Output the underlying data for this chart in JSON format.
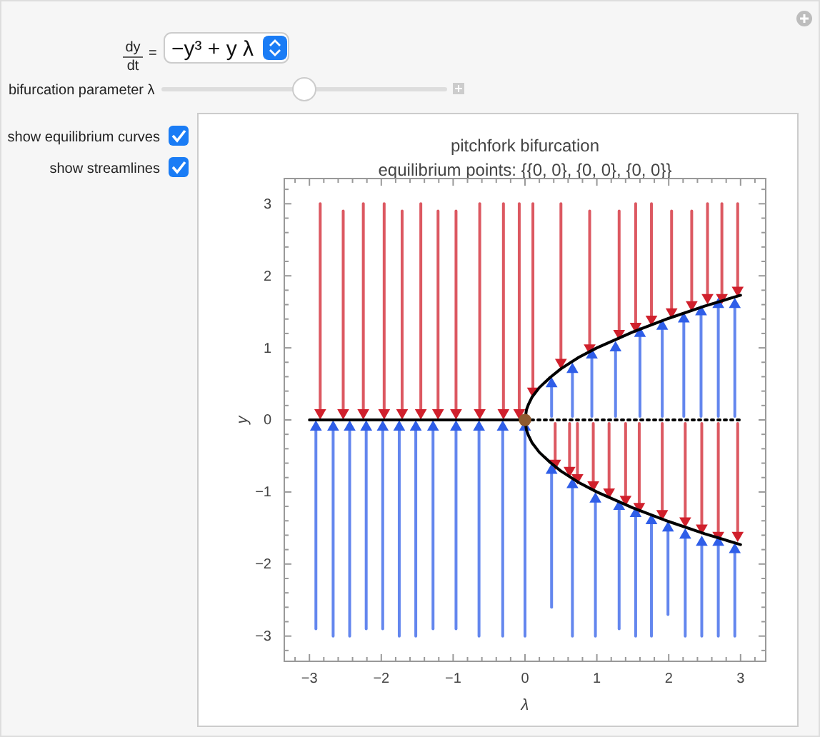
{
  "chart_data": {
    "type": "line",
    "title": "pitchfork bifurcation",
    "subtitle": "equilibrium points: {{0, 0}, {0, 0}, {0, 0}}",
    "xlabel": "λ",
    "ylabel": "y",
    "annotations": [
      "dy",
      "dt",
      "=",
      "−y³ + y λ",
      "bifurcation parameter λ",
      "show equilibrium curves",
      "show streamlines"
    ],
    "xlim": [
      -3.35,
      3.35
    ],
    "ylim": [
      -3.35,
      3.35
    ],
    "xticks": [
      {
        "value": -3.2,
        "label": null
      },
      {
        "value": -3,
        "label": "−3"
      },
      {
        "value": -2.8,
        "label": null
      },
      {
        "value": -2.6,
        "label": null
      },
      {
        "value": -2.4,
        "label": null
      },
      {
        "value": -2.2,
        "label": null
      },
      {
        "value": -2,
        "label": "−2"
      },
      {
        "value": -1.8,
        "label": null
      },
      {
        "value": -1.6,
        "label": null
      },
      {
        "value": -1.4,
        "label": null
      },
      {
        "value": -1.2,
        "label": null
      },
      {
        "value": -1,
        "label": "−1"
      },
      {
        "value": -0.8,
        "label": null
      },
      {
        "value": -0.6,
        "label": null
      },
      {
        "value": -0.4,
        "label": null
      },
      {
        "value": -0.2,
        "label": null
      },
      0,
      {
        "value": 0.2,
        "label": null
      },
      {
        "value": 0.4,
        "label": null
      },
      {
        "value": 0.6,
        "label": null
      },
      {
        "value": 0.8,
        "label": null
      },
      1,
      {
        "value": 1.2,
        "label": null
      },
      {
        "value": 1.4,
        "label": null
      },
      {
        "value": 1.6,
        "label": null
      },
      {
        "value": 1.8,
        "label": null
      },
      2,
      {
        "value": 2.2,
        "label": null
      },
      {
        "value": 2.4,
        "label": null
      },
      {
        "value": 2.6,
        "label": null
      },
      {
        "value": 2.8,
        "label": null
      },
      3,
      {
        "value": 3.2,
        "label": null
      }
    ],
    "yticks": [
      {
        "value": -3.2,
        "label": null
      },
      {
        "value": -3,
        "label": "−3"
      },
      {
        "value": -2.8,
        "label": null
      },
      {
        "value": -2.6,
        "label": null
      },
      {
        "value": -2.4,
        "label": null
      },
      {
        "value": -2.2,
        "label": null
      },
      {
        "value": -2,
        "label": "−2"
      },
      {
        "value": -1.8,
        "label": null
      },
      {
        "value": -1.6,
        "label": null
      },
      {
        "value": -1.4,
        "label": null
      },
      {
        "value": -1.2,
        "label": null
      },
      {
        "value": -1,
        "label": "−1"
      },
      {
        "value": -0.8,
        "label": null
      },
      {
        "value": -0.6,
        "label": null
      },
      {
        "value": -0.4,
        "label": null
      },
      {
        "value": -0.2,
        "label": null
      },
      0,
      {
        "value": 0.2,
        "label": null
      },
      {
        "value": 0.4,
        "label": null
      },
      {
        "value": 0.6,
        "label": null
      },
      {
        "value": 0.8,
        "label": null
      },
      1,
      {
        "value": 1.2,
        "label": null
      },
      {
        "value": 1.4,
        "label": null
      },
      {
        "value": 1.6,
        "label": null
      },
      {
        "value": 1.8,
        "label": null
      },
      2,
      {
        "value": 2.2,
        "label": null
      },
      {
        "value": 2.4,
        "label": null
      },
      {
        "value": 2.6,
        "label": null
      },
      {
        "value": 2.8,
        "label": null
      },
      3,
      {
        "value": 3.2,
        "label": null
      }
    ],
    "grid": false,
    "series": [
      {
        "color": "#d0202c",
        "marker": "triangle",
        "x": [
          -2.85,
          -2.85
        ],
        "values": [
          3,
          0.1
        ]
      },
      {
        "color": "#d0202c",
        "marker": "triangle",
        "x": [
          -2.53,
          -2.53
        ],
        "values": [
          2.9,
          0.1
        ]
      },
      {
        "color": "#d0202c",
        "marker": "triangle",
        "x": [
          -2.25,
          -2.25
        ],
        "values": [
          3,
          0.1
        ]
      },
      {
        "color": "#d0202c",
        "marker": "triangle",
        "x": [
          -1.96,
          -1.96
        ],
        "values": [
          3,
          0.1
        ]
      },
      {
        "color": "#d0202c",
        "marker": "triangle",
        "x": [
          -1.71,
          -1.71
        ],
        "values": [
          2.9,
          0.1
        ]
      },
      {
        "color": "#d0202c",
        "marker": "triangle",
        "x": [
          -1.45,
          -1.45
        ],
        "values": [
          3,
          0.1
        ]
      },
      {
        "color": "#d0202c",
        "marker": "triangle",
        "x": [
          -1.21,
          -1.21
        ],
        "values": [
          2.9,
          0.1
        ]
      },
      {
        "color": "#d0202c",
        "marker": "triangle",
        "x": [
          -0.96,
          -0.96
        ],
        "values": [
          2.9,
          0.1
        ]
      },
      {
        "color": "#d0202c",
        "marker": "triangle",
        "x": [
          -0.63,
          -0.63
        ],
        "values": [
          3,
          0.1
        ]
      },
      {
        "color": "#d0202c",
        "marker": "triangle",
        "x": [
          -0.3,
          -0.3
        ],
        "values": [
          3,
          0.1
        ]
      },
      {
        "color": "#d0202c",
        "marker": "triangle",
        "x": [
          -0.08,
          -0.08
        ],
        "values": [
          3,
          0.1
        ]
      },
      {
        "color": "#d0202c",
        "marker": "triangle",
        "x": [
          0.11,
          0.11
        ],
        "values": [
          3,
          0.4
        ]
      },
      {
        "color": "#d0202c",
        "marker": "triangle",
        "x": [
          0.5,
          0.5
        ],
        "values": [
          3,
          0.8
        ]
      },
      {
        "color": "#d0202c",
        "marker": "triangle",
        "x": [
          0.9,
          0.9
        ],
        "values": [
          2.9,
          1.0
        ]
      },
      {
        "color": "#d0202c",
        "marker": "triangle",
        "x": [
          1.31,
          1.31
        ],
        "values": [
          2.9,
          1.2
        ]
      },
      {
        "color": "#d0202c",
        "marker": "triangle",
        "x": [
          1.54,
          1.54
        ],
        "values": [
          3,
          1.3
        ]
      },
      {
        "color": "#d0202c",
        "marker": "triangle",
        "x": [
          1.76,
          1.76
        ],
        "values": [
          3,
          1.4
        ]
      },
      {
        "color": "#d0202c",
        "marker": "triangle",
        "x": [
          2.04,
          2.04
        ],
        "values": [
          2.9,
          1.5
        ]
      },
      {
        "color": "#d0202c",
        "marker": "triangle",
        "x": [
          2.32,
          2.32
        ],
        "values": [
          2.9,
          1.6
        ]
      },
      {
        "color": "#d0202c",
        "marker": "triangle",
        "x": [
          2.54,
          2.54
        ],
        "values": [
          3,
          1.7
        ]
      },
      {
        "color": "#d0202c",
        "marker": "triangle",
        "x": [
          2.74,
          2.74
        ],
        "values": [
          3,
          1.7
        ]
      },
      {
        "color": "#d0202c",
        "marker": "triangle",
        "x": [
          2.96,
          2.96
        ],
        "values": [
          3,
          1.8
        ]
      },
      {
        "color": "#2f5ee8",
        "marker": "triangle",
        "x": [
          0.37,
          0.37
        ],
        "values": [
          0.05,
          0.5
        ]
      },
      {
        "color": "#2f5ee8",
        "marker": "triangle",
        "x": [
          0.66,
          0.66
        ],
        "values": [
          0.05,
          0.7
        ]
      },
      {
        "color": "#2f5ee8",
        "marker": "triangle",
        "x": [
          0.93,
          0.93
        ],
        "values": [
          0.05,
          0.9
        ]
      },
      {
        "color": "#2f5ee8",
        "marker": "triangle",
        "x": [
          1.26,
          1.26
        ],
        "values": [
          0.05,
          1.0
        ]
      },
      {
        "color": "#2f5ee8",
        "marker": "triangle",
        "x": [
          1.6,
          1.6
        ],
        "values": [
          0.05,
          1.2
        ]
      },
      {
        "color": "#2f5ee8",
        "marker": "triangle",
        "x": [
          1.91,
          1.91
        ],
        "values": [
          0.05,
          1.3
        ]
      },
      {
        "color": "#2f5ee8",
        "marker": "triangle",
        "x": [
          2.21,
          2.21
        ],
        "values": [
          0.05,
          1.4
        ]
      },
      {
        "color": "#2f5ee8",
        "marker": "triangle",
        "x": [
          2.45,
          2.45
        ],
        "values": [
          0.05,
          1.5
        ]
      },
      {
        "color": "#2f5ee8",
        "marker": "triangle",
        "x": [
          2.69,
          2.69
        ],
        "values": [
          0.05,
          1.6
        ]
      },
      {
        "color": "#2f5ee8",
        "marker": "triangle",
        "x": [
          2.92,
          2.92
        ],
        "values": [
          0.05,
          1.6
        ]
      },
      {
        "color": "#d0202c",
        "marker": "triangle",
        "x": [
          0.42,
          0.42
        ],
        "values": [
          -0.05,
          -0.6
        ]
      },
      {
        "color": "#d0202c",
        "marker": "triangle",
        "x": [
          0.62,
          0.62
        ],
        "values": [
          -0.05,
          -0.7
        ]
      },
      {
        "color": "#d0202c",
        "marker": "triangle",
        "x": [
          0.73,
          0.73
        ],
        "values": [
          -0.05,
          -0.8
        ]
      },
      {
        "color": "#d0202c",
        "marker": "triangle",
        "x": [
          0.95,
          0.95
        ],
        "values": [
          -0.05,
          -0.9
        ]
      },
      {
        "color": "#d0202c",
        "marker": "triangle",
        "x": [
          1.17,
          1.17
        ],
        "values": [
          -0.05,
          -1.0
        ]
      },
      {
        "color": "#d0202c",
        "marker": "triangle",
        "x": [
          1.4,
          1.4
        ],
        "values": [
          -0.05,
          -1.1
        ]
      },
      {
        "color": "#d0202c",
        "marker": "triangle",
        "x": [
          1.59,
          1.59
        ],
        "values": [
          -0.05,
          -1.2
        ]
      },
      {
        "color": "#d0202c",
        "marker": "triangle",
        "x": [
          1.91,
          1.91
        ],
        "values": [
          -0.05,
          -1.3
        ]
      },
      {
        "color": "#d0202c",
        "marker": "triangle",
        "x": [
          2.23,
          2.23
        ],
        "values": [
          -0.05,
          -1.4
        ]
      },
      {
        "color": "#d0202c",
        "marker": "triangle",
        "x": [
          2.46,
          2.46
        ],
        "values": [
          -0.05,
          -1.5
        ]
      },
      {
        "color": "#d0202c",
        "marker": "triangle",
        "x": [
          2.69,
          2.69
        ],
        "values": [
          -0.05,
          -1.6
        ]
      },
      {
        "color": "#d0202c",
        "marker": "triangle",
        "x": [
          2.96,
          2.96
        ],
        "values": [
          -0.05,
          -1.6
        ]
      },
      {
        "color": "#2f5ee8",
        "marker": "triangle",
        "x": [
          -2.91,
          -2.91
        ],
        "values": [
          -2.9,
          -0.1
        ]
      },
      {
        "color": "#2f5ee8",
        "marker": "triangle",
        "x": [
          -2.67,
          -2.67
        ],
        "values": [
          -3,
          -0.1
        ]
      },
      {
        "color": "#2f5ee8",
        "marker": "triangle",
        "x": [
          -2.44,
          -2.44
        ],
        "values": [
          -3,
          -0.1
        ]
      },
      {
        "color": "#2f5ee8",
        "marker": "triangle",
        "x": [
          -2.21,
          -2.21
        ],
        "values": [
          -2.9,
          -0.1
        ]
      },
      {
        "color": "#2f5ee8",
        "marker": "triangle",
        "x": [
          -1.98,
          -1.98
        ],
        "values": [
          -2.9,
          -0.1
        ]
      },
      {
        "color": "#2f5ee8",
        "marker": "triangle",
        "x": [
          -1.75,
          -1.75
        ],
        "values": [
          -3,
          -0.1
        ]
      },
      {
        "color": "#2f5ee8",
        "marker": "triangle",
        "x": [
          -1.52,
          -1.52
        ],
        "values": [
          -3,
          -0.1
        ]
      },
      {
        "color": "#2f5ee8",
        "marker": "triangle",
        "x": [
          -1.28,
          -1.28
        ],
        "values": [
          -2.9,
          -0.1
        ]
      },
      {
        "color": "#2f5ee8",
        "marker": "triangle",
        "x": [
          -0.96,
          -0.96
        ],
        "values": [
          -2.9,
          -0.1
        ]
      },
      {
        "color": "#2f5ee8",
        "marker": "triangle",
        "x": [
          -0.64,
          -0.64
        ],
        "values": [
          -3,
          -0.1
        ]
      },
      {
        "color": "#2f5ee8",
        "marker": "triangle",
        "x": [
          -0.31,
          -0.31
        ],
        "values": [
          -3,
          -0.1
        ]
      },
      {
        "color": "#2f5ee8",
        "marker": "triangle",
        "x": [
          0,
          0
        ],
        "values": [
          -3,
          -0.1
        ]
      },
      {
        "color": "#2f5ee8",
        "marker": "triangle",
        "x": [
          0.37,
          0.37
        ],
        "values": [
          -2.6,
          -0.7
        ]
      },
      {
        "color": "#2f5ee8",
        "marker": "triangle",
        "x": [
          0.66,
          0.66
        ],
        "values": [
          -3,
          -0.9
        ]
      },
      {
        "color": "#2f5ee8",
        "marker": "triangle",
        "x": [
          0.98,
          0.98
        ],
        "values": [
          -3,
          -1.1
        ]
      },
      {
        "color": "#2f5ee8",
        "marker": "triangle",
        "x": [
          1.31,
          1.31
        ],
        "values": [
          -2.9,
          -1.2
        ]
      },
      {
        "color": "#2f5ee8",
        "marker": "triangle",
        "x": [
          1.54,
          1.54
        ],
        "values": [
          -3,
          -1.3
        ]
      },
      {
        "color": "#2f5ee8",
        "marker": "triangle",
        "x": [
          1.76,
          1.76
        ],
        "values": [
          -3,
          -1.4
        ]
      },
      {
        "color": "#2f5ee8",
        "marker": "triangle",
        "x": [
          1.99,
          1.99
        ],
        "values": [
          -2.7,
          -1.5
        ]
      },
      {
        "color": "#2f5ee8",
        "marker": "triangle",
        "x": [
          2.23,
          2.23
        ],
        "values": [
          -3,
          -1.6
        ]
      },
      {
        "color": "#2f5ee8",
        "marker": "triangle",
        "x": [
          2.46,
          2.46
        ],
        "values": [
          -3,
          -1.7
        ]
      },
      {
        "color": "#2f5ee8",
        "marker": "triangle",
        "x": [
          2.69,
          2.69
        ],
        "values": [
          -3,
          -1.7
        ]
      },
      {
        "color": "#2f5ee8",
        "marker": "triangle",
        "x": [
          2.92,
          2.92
        ],
        "values": [
          -3,
          -1.8
        ]
      },
      {
        "color": "#000000",
        "line_style": "solid",
        "x": [
          -3,
          0
        ],
        "values": [
          0,
          0
        ]
      },
      {
        "color": "#000000",
        "line_style": "dotted",
        "x": [
          0,
          3
        ],
        "values": [
          0,
          0
        ]
      },
      {
        "color": "#000000",
        "line_style": "solid",
        "x": [
          0,
          0.02,
          0.05,
          0.1,
          0.2,
          0.35,
          0.5,
          0.75,
          1,
          1.5,
          2,
          2.5,
          3
        ],
        "values": [
          0,
          0.14,
          0.22,
          0.32,
          0.45,
          0.59,
          0.71,
          0.87,
          1,
          1.22,
          1.41,
          1.58,
          1.73
        ]
      },
      {
        "color": "#000000",
        "line_style": "solid",
        "x": [
          0,
          0.02,
          0.05,
          0.1,
          0.2,
          0.35,
          0.5,
          0.75,
          1,
          1.5,
          2,
          2.5,
          3
        ],
        "values": [
          0,
          -0.14,
          -0.22,
          -0.32,
          -0.45,
          -0.59,
          -0.71,
          -0.87,
          -1,
          -1.22,
          -1.41,
          -1.58,
          -1.73
        ]
      },
      {
        "type": "scatter",
        "color": "#8f5a2e",
        "marker": "circle",
        "x": [
          0
        ],
        "values": [
          0
        ]
      }
    ]
  }
}
